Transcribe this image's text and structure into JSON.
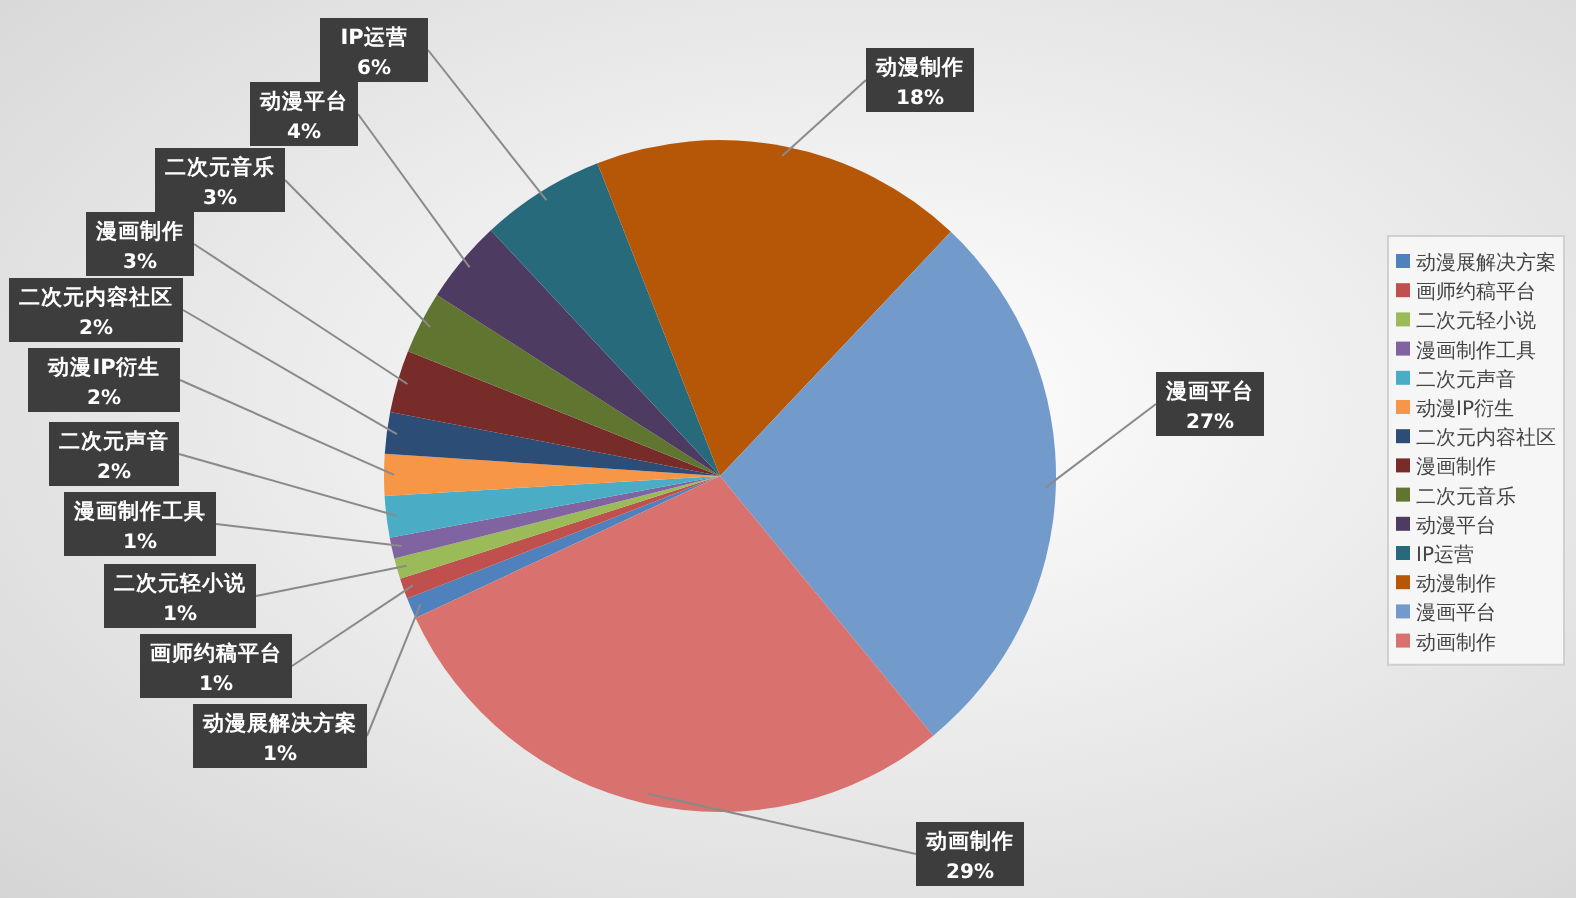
{
  "chart_data": {
    "type": "pie",
    "categories": [
      "动漫展解决方案",
      "画师约稿平台",
      "二次元轻小说",
      "漫画制作工具",
      "二次元声音",
      "动漫IP衍生",
      "二次元内容社区",
      "漫画制作",
      "二次元音乐",
      "动漫平台",
      "IP运营",
      "动漫制作",
      "漫画平台",
      "动画制作"
    ],
    "values": [
      1,
      1,
      1,
      1,
      2,
      2,
      2,
      3,
      3,
      4,
      6,
      18,
      27,
      29
    ],
    "value_labels": [
      "1%",
      "1%",
      "1%",
      "1%",
      "2%",
      "2%",
      "2%",
      "3%",
      "3%",
      "4%",
      "6%",
      "18%",
      "27%",
      "29%"
    ],
    "colors": [
      "#4f81bd",
      "#c0504d",
      "#9bbb59",
      "#8064a2",
      "#4bacc6",
      "#f79646",
      "#2c4d75",
      "#772c2a",
      "#5f7530",
      "#4d3b62",
      "#276a7c",
      "#b65708",
      "#729aca",
      "#d9726f"
    ],
    "legend": "right"
  }
}
